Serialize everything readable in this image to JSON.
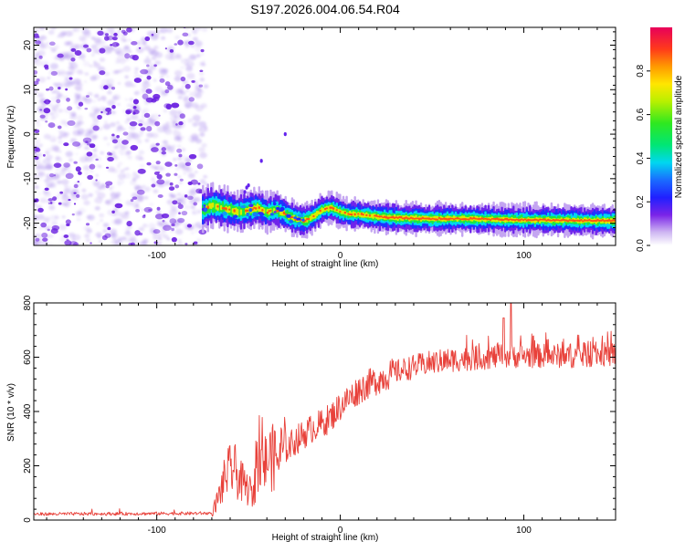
{
  "chart_data": [
    {
      "type": "heatmap",
      "title": "S197.2026.004.06.54.R04",
      "xlabel": "Height of straight line (km)",
      "ylabel": "Frequency (Hz)",
      "xlim": [
        -167,
        150
      ],
      "ylim": [
        -25,
        24
      ],
      "xticks": [
        -100,
        0,
        100
      ],
      "xtick_labels": [
        "-100",
        "0",
        "100"
      ],
      "yticks": [
        -20,
        -10,
        0,
        10,
        20
      ],
      "ytick_labels": [
        "-20",
        "-10",
        "0",
        "10",
        "20"
      ],
      "colorbar": {
        "label": "Normalized spectral amplitude",
        "range": [
          0,
          1
        ],
        "ticks": [
          0,
          0.2,
          0.4,
          0.6,
          0.8
        ],
        "tick_labels": [
          "0.0",
          "0.2",
          "0.4",
          "0.6",
          "0.8"
        ]
      },
      "noise_region": {
        "x": [
          -167,
          -75
        ],
        "y": [
          -25,
          24
        ],
        "amplitude": 0.1
      },
      "trace": {
        "points": [
          [
            -75,
            -17
          ],
          [
            -70,
            -16
          ],
          [
            -65,
            -16.5
          ],
          [
            -60,
            -17
          ],
          [
            -55,
            -17.5
          ],
          [
            -50,
            -17
          ],
          [
            -45,
            -16.5
          ],
          [
            -40,
            -17.5
          ],
          [
            -35,
            -17
          ],
          [
            -30,
            -18
          ],
          [
            -25,
            -19
          ],
          [
            -20,
            -19.5
          ],
          [
            -15,
            -18.5
          ],
          [
            -10,
            -17
          ],
          [
            -5,
            -16.5
          ],
          [
            0,
            -17.5
          ],
          [
            5,
            -18
          ],
          [
            10,
            -18
          ],
          [
            20,
            -18.5
          ],
          [
            30,
            -18.8
          ],
          [
            50,
            -19
          ],
          [
            70,
            -19
          ],
          [
            90,
            -19.2
          ],
          [
            110,
            -19.3
          ],
          [
            130,
            -19.4
          ],
          [
            150,
            -19.5
          ]
        ],
        "peak_amplitude": 0.95
      }
    },
    {
      "type": "line",
      "xlabel": "Height of straight line (km)",
      "ylabel": "SNR (10 * v/v)",
      "xlim": [
        -167,
        150
      ],
      "ylim": [
        0,
        800
      ],
      "xticks": [
        -100,
        0,
        100
      ],
      "xtick_labels": [
        "-100",
        "0",
        "100"
      ],
      "yticks": [
        0,
        200,
        400,
        600,
        800
      ],
      "ytick_labels": [
        "0",
        "200",
        "400",
        "600",
        "800"
      ],
      "series": [
        {
          "name": "SNR",
          "color": "#e8413a",
          "envelope_x": [
            -167,
            -70,
            -66,
            -62,
            -58,
            -55,
            -52,
            -48,
            -45,
            -42,
            -38,
            -35,
            -30,
            -25,
            -20,
            -15,
            -10,
            -5,
            0,
            5,
            10,
            15,
            20,
            30,
            40,
            50,
            60,
            70,
            80,
            90,
            100,
            110,
            120,
            130,
            140,
            150
          ],
          "envelope_y": [
            22,
            25,
            90,
            170,
            190,
            150,
            125,
            100,
            170,
            200,
            235,
            220,
            260,
            290,
            315,
            340,
            355,
            380,
            420,
            450,
            480,
            500,
            515,
            545,
            565,
            580,
            590,
            595,
            600,
            605,
            605,
            605,
            605,
            605,
            610,
            610
          ]
        }
      ]
    }
  ],
  "colors": {
    "line": "#e8413a",
    "noise": "#6a1fe0",
    "frame": "#000000"
  }
}
